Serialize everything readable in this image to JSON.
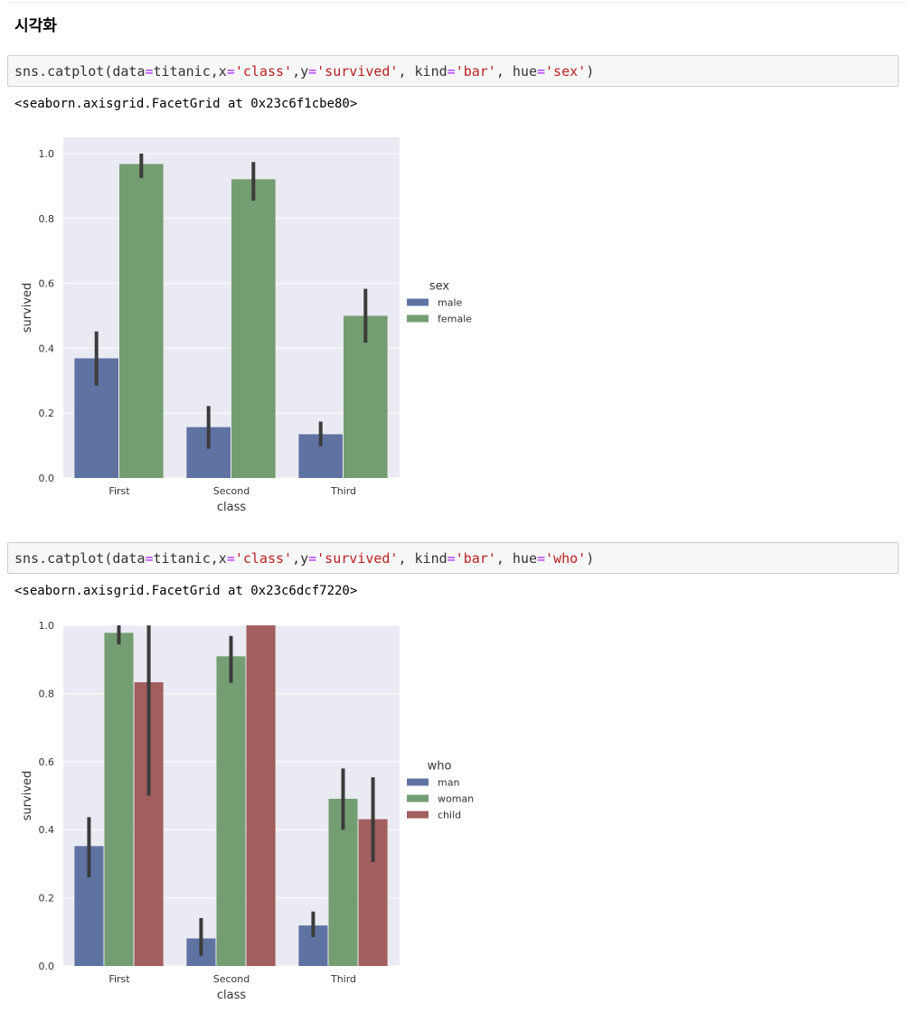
{
  "heading": "시각화",
  "cells": [
    {
      "code": {
        "fn": "sns.catplot",
        "arg1_pre": "(data",
        "eq1": "=",
        "arg1_val": "titanic,x",
        "eq2": "=",
        "x_str": "'class'",
        "comma1": ",y",
        "eq3": "=",
        "y_str": "'survived'",
        "comma2": ", kind",
        "eq4": "=",
        "kind_str": "'bar'",
        "comma3": ", hue",
        "eq5": "=",
        "hue_str": "'sex'",
        "close": ")"
      },
      "output": "<seaborn.axisgrid.FacetGrid at 0x23c6f1cbe80>"
    },
    {
      "code": {
        "fn": "sns.catplot",
        "arg1_pre": "(data",
        "eq1": "=",
        "arg1_val": "titanic,x",
        "eq2": "=",
        "x_str": "'class'",
        "comma1": ",y",
        "eq3": "=",
        "y_str": "'survived'",
        "comma2": ", kind",
        "eq4": "=",
        "kind_str": "'bar'",
        "comma3": ", hue",
        "eq5": "=",
        "hue_str": "'who'",
        "close": ")"
      },
      "output": "<seaborn.axisgrid.FacetGrid at 0x23c6dcf7220>"
    }
  ],
  "chart_data": [
    {
      "type": "bar",
      "categories": [
        "First",
        "Second",
        "Third"
      ],
      "xlabel": "class",
      "ylabel": "survived",
      "ylim": [
        0,
        1.05
      ],
      "yticks": [
        "0.0",
        "0.2",
        "0.4",
        "0.6",
        "0.8",
        "1.0"
      ],
      "grid": true,
      "legend_title": "sex",
      "legend_position": "right",
      "series": [
        {
          "name": "male",
          "color": "#5f73a3",
          "values": [
            0.369,
            0.157,
            0.135
          ],
          "err_low": [
            0.285,
            0.09,
            0.098
          ],
          "err_high": [
            0.452,
            0.222,
            0.174
          ]
        },
        {
          "name": "female",
          "color": "#739e72",
          "values": [
            0.968,
            0.921,
            0.5
          ],
          "err_low": [
            0.925,
            0.855,
            0.417
          ],
          "err_high": [
            1.0,
            0.974,
            0.583
          ]
        }
      ]
    },
    {
      "type": "bar",
      "categories": [
        "First",
        "Second",
        "Third"
      ],
      "xlabel": "class",
      "ylabel": "survived",
      "ylim": [
        0,
        1.0
      ],
      "yticks": [
        "0.0",
        "0.2",
        "0.4",
        "0.6",
        "0.8",
        "1.0"
      ],
      "grid": true,
      "legend_title": "who",
      "legend_position": "right",
      "series": [
        {
          "name": "man",
          "color": "#5f73a3",
          "values": [
            0.352,
            0.081,
            0.119
          ],
          "err_low": [
            0.26,
            0.03,
            0.085
          ],
          "err_high": [
            0.437,
            0.141,
            0.16
          ]
        },
        {
          "name": "woman",
          "color": "#739e72",
          "values": [
            0.978,
            0.909,
            0.491
          ],
          "err_low": [
            0.944,
            0.831,
            0.4
          ],
          "err_high": [
            1.0,
            0.969,
            0.58
          ]
        },
        {
          "name": "child",
          "color": "#a35e5e",
          "values": [
            0.833,
            1.0,
            0.431
          ],
          "err_low": [
            0.5,
            1.0,
            0.305
          ],
          "err_high": [
            1.0,
            1.0,
            0.554
          ]
        }
      ]
    }
  ]
}
